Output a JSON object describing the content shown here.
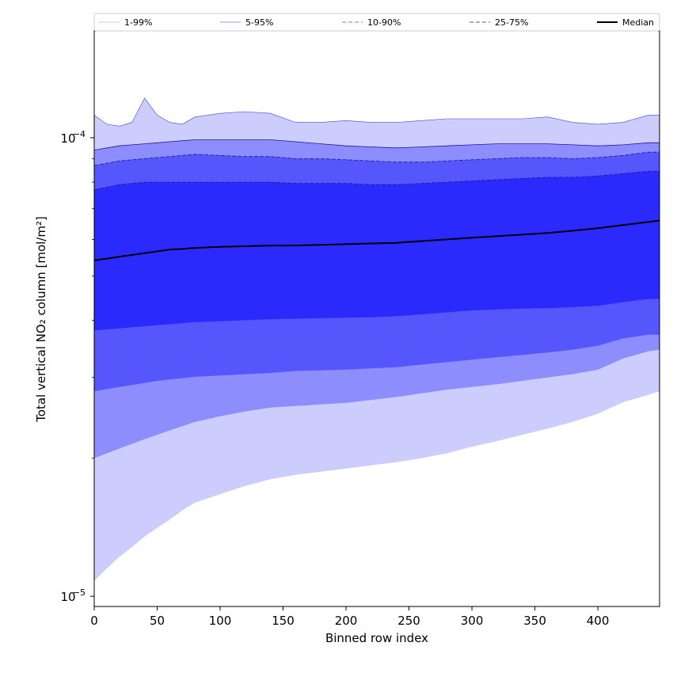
{
  "chart_data": {
    "type": "area",
    "xlabel": "Binned row index",
    "ylabel": "Total vertical NO₂ column [mol/m²]",
    "xlim": [
      0,
      449
    ],
    "ylim": [
      9.5e-06,
      0.000171
    ],
    "yscale": "log",
    "grid": false,
    "legend_placement": "top",
    "x_ticks": [
      0,
      50,
      100,
      150,
      200,
      250,
      300,
      350,
      400
    ],
    "x_tick_labels": [
      "0",
      "50",
      "100",
      "150",
      "200",
      "250",
      "300",
      "350",
      "400"
    ],
    "y_ticks": [
      1e-05,
      0.0001
    ],
    "y_tick_labels": [
      {
        "base": "10",
        "exp": "−5"
      },
      {
        "base": "10",
        "exp": "−4"
      }
    ],
    "x": [
      0,
      10,
      20,
      30,
      40,
      50,
      60,
      70,
      80,
      100,
      120,
      140,
      160,
      180,
      200,
      220,
      240,
      260,
      280,
      300,
      320,
      340,
      360,
      380,
      400,
      420,
      440,
      449
    ],
    "bands": [
      {
        "name": "1-99%",
        "color": "#cdcdfd",
        "lower": [
          1.08e-05,
          1.15e-05,
          1.22e-05,
          1.28e-05,
          1.35e-05,
          1.41e-05,
          1.47e-05,
          1.54e-05,
          1.6e-05,
          1.67e-05,
          1.74e-05,
          1.8e-05,
          1.84e-05,
          1.87e-05,
          1.9e-05,
          1.93e-05,
          1.96e-05,
          2e-05,
          2.05e-05,
          2.12e-05,
          2.18e-05,
          2.25e-05,
          2.32e-05,
          2.4e-05,
          2.5e-05,
          2.65e-05,
          2.75e-05,
          2.8e-05
        ],
        "upper": [
          0.000112,
          0.000107,
          0.000106,
          0.000108,
          0.000122,
          0.000112,
          0.000108,
          0.000107,
          0.000111,
          0.000113,
          0.000114,
          0.000113,
          0.000108,
          0.000108,
          0.000109,
          0.000108,
          0.000108,
          0.000109,
          0.00011,
          0.00011,
          0.00011,
          0.00011,
          0.000111,
          0.000108,
          0.000107,
          0.000108,
          0.000112,
          0.000112
        ]
      },
      {
        "name": "5-95%",
        "color": "#8d8dfd",
        "lower": [
          2e-05,
          2.05e-05,
          2.1e-05,
          2.15e-05,
          2.2e-05,
          2.25e-05,
          2.3e-05,
          2.35e-05,
          2.4e-05,
          2.47e-05,
          2.53e-05,
          2.58e-05,
          2.6e-05,
          2.62e-05,
          2.64e-05,
          2.68e-05,
          2.72e-05,
          2.77e-05,
          2.82e-05,
          2.86e-05,
          2.9e-05,
          2.95e-05,
          3e-05,
          3.05e-05,
          3.12e-05,
          3.3e-05,
          3.42e-05,
          3.45e-05
        ],
        "upper": [
          9.4e-05,
          9.5e-05,
          9.6e-05,
          9.65e-05,
          9.7e-05,
          9.75e-05,
          9.8e-05,
          9.85e-05,
          9.9e-05,
          9.9e-05,
          9.9e-05,
          9.9e-05,
          9.8e-05,
          9.7e-05,
          9.6e-05,
          9.55e-05,
          9.5e-05,
          9.55e-05,
          9.6e-05,
          9.65e-05,
          9.7e-05,
          9.7e-05,
          9.7e-05,
          9.65e-05,
          9.6e-05,
          9.65e-05,
          9.75e-05,
          9.75e-05
        ]
      },
      {
        "name": "10-90%",
        "color": "#5656fd",
        "lower": [
          2.8e-05,
          2.83e-05,
          2.86e-05,
          2.89e-05,
          2.92e-05,
          2.95e-05,
          2.97e-05,
          2.99e-05,
          3.01e-05,
          3.03e-05,
          3.05e-05,
          3.07e-05,
          3.1e-05,
          3.11e-05,
          3.12e-05,
          3.14e-05,
          3.16e-05,
          3.2e-05,
          3.24e-05,
          3.28e-05,
          3.32e-05,
          3.36e-05,
          3.4e-05,
          3.45e-05,
          3.52e-05,
          3.65e-05,
          3.72e-05,
          3.72e-05
        ],
        "upper": [
          8.7e-05,
          8.8e-05,
          8.9e-05,
          8.95e-05,
          9e-05,
          9.05e-05,
          9.1e-05,
          9.15e-05,
          9.2e-05,
          9.15e-05,
          9.1e-05,
          9.1e-05,
          9e-05,
          9e-05,
          8.95e-05,
          8.9e-05,
          8.85e-05,
          8.85e-05,
          8.9e-05,
          8.95e-05,
          9e-05,
          9.05e-05,
          9.05e-05,
          9e-05,
          9.05e-05,
          9.15e-05,
          9.3e-05,
          9.3e-05
        ]
      },
      {
        "name": "25-75%",
        "color": "#2a2afd",
        "lower": [
          3.8e-05,
          3.82e-05,
          3.84e-05,
          3.86e-05,
          3.88e-05,
          3.9e-05,
          3.92e-05,
          3.94e-05,
          3.96e-05,
          3.98e-05,
          4e-05,
          4.02e-05,
          4.03e-05,
          4.04e-05,
          4.05e-05,
          4.06e-05,
          4.08e-05,
          4.12e-05,
          4.16e-05,
          4.2e-05,
          4.22e-05,
          4.24e-05,
          4.25e-05,
          4.27e-05,
          4.3e-05,
          4.38e-05,
          4.45e-05,
          4.45e-05
        ],
        "upper": [
          7.7e-05,
          7.8e-05,
          7.9e-05,
          7.95e-05,
          8e-05,
          8e-05,
          8e-05,
          8e-05,
          8e-05,
          8e-05,
          8e-05,
          8e-05,
          7.95e-05,
          7.95e-05,
          7.95e-05,
          7.9e-05,
          7.9e-05,
          7.95e-05,
          8e-05,
          8.05e-05,
          8.1e-05,
          8.15e-05,
          8.2e-05,
          8.2e-05,
          8.25e-05,
          8.35e-05,
          8.45e-05,
          8.45e-05
        ]
      }
    ],
    "series": [
      {
        "name": "Median",
        "color": "#000000",
        "values": [
          5.4e-05,
          5.45e-05,
          5.5e-05,
          5.55e-05,
          5.6e-05,
          5.65e-05,
          5.7e-05,
          5.72e-05,
          5.75e-05,
          5.78e-05,
          5.8e-05,
          5.82e-05,
          5.82e-05,
          5.84e-05,
          5.86e-05,
          5.88e-05,
          5.9e-05,
          5.95e-05,
          6e-05,
          6.05e-05,
          6.1e-05,
          6.15e-05,
          6.2e-05,
          6.27e-05,
          6.35e-05,
          6.45e-05,
          6.55e-05,
          6.6e-05
        ]
      }
    ],
    "legend": [
      {
        "label": "1-99%",
        "style": "band-edge",
        "color": "#c8c8ff",
        "dash": ""
      },
      {
        "label": "5-95%",
        "style": "band-edge",
        "color": "#9a9aff",
        "dash": ""
      },
      {
        "label": "10-90%",
        "style": "dashed",
        "color": "#7b7bff",
        "dash": "5,3"
      },
      {
        "label": "25-75%",
        "style": "dashed",
        "color": "#4a4aee",
        "dash": "5,3"
      },
      {
        "label": "Median",
        "style": "solid",
        "color": "#000000",
        "dash": ""
      }
    ]
  }
}
